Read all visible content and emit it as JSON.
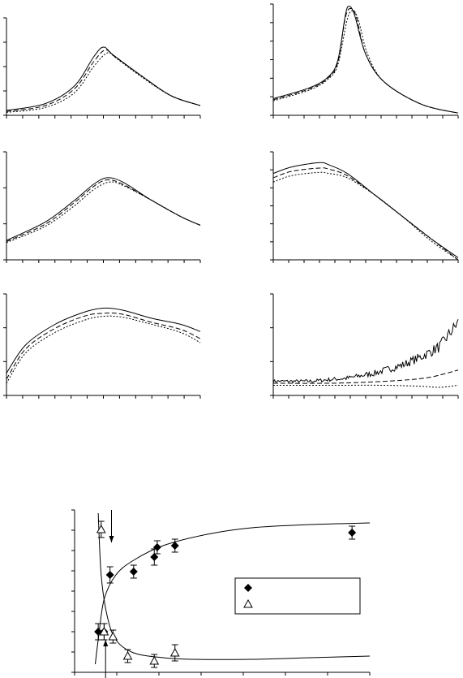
{
  "chart_data": [
    {
      "type": "line",
      "panel": "top-left",
      "series": [
        {
          "style": "solid",
          "points": [
            [
              0,
              0.05
            ],
            [
              0.2,
              0.12
            ],
            [
              0.35,
              0.3
            ],
            [
              0.45,
              0.6
            ],
            [
              0.5,
              0.7
            ],
            [
              0.55,
              0.62
            ],
            [
              0.7,
              0.4
            ],
            [
              0.85,
              0.2
            ],
            [
              1.0,
              0.1
            ]
          ]
        },
        {
          "style": "dashed",
          "points": [
            [
              0,
              0.04
            ],
            [
              0.2,
              0.1
            ],
            [
              0.35,
              0.27
            ],
            [
              0.45,
              0.55
            ],
            [
              0.51,
              0.67
            ],
            [
              0.56,
              0.6
            ],
            [
              0.7,
              0.4
            ],
            [
              0.85,
              0.2
            ],
            [
              1.0,
              0.1
            ]
          ]
        },
        {
          "style": "dotted",
          "points": [
            [
              0,
              0.03
            ],
            [
              0.2,
              0.08
            ],
            [
              0.35,
              0.23
            ],
            [
              0.45,
              0.5
            ],
            [
              0.52,
              0.64
            ],
            [
              0.57,
              0.58
            ],
            [
              0.7,
              0.39
            ],
            [
              0.85,
              0.2
            ],
            [
              1.0,
              0.1
            ]
          ]
        }
      ],
      "xlim": [
        0,
        1
      ],
      "ylim": [
        0,
        1
      ]
    },
    {
      "type": "line",
      "panel": "top-right",
      "series": [
        {
          "style": "solid",
          "points": [
            [
              0,
              0.15
            ],
            [
              0.2,
              0.25
            ],
            [
              0.3,
              0.35
            ],
            [
              0.35,
              0.5
            ],
            [
              0.39,
              0.9
            ],
            [
              0.41,
              0.98
            ],
            [
              0.44,
              0.9
            ],
            [
              0.5,
              0.55
            ],
            [
              0.6,
              0.3
            ],
            [
              0.8,
              0.1
            ],
            [
              1.0,
              0.02
            ]
          ]
        },
        {
          "style": "dashed",
          "points": [
            [
              0,
              0.14
            ],
            [
              0.2,
              0.24
            ],
            [
              0.3,
              0.34
            ],
            [
              0.35,
              0.48
            ],
            [
              0.39,
              0.88
            ],
            [
              0.42,
              0.96
            ],
            [
              0.45,
              0.88
            ],
            [
              0.5,
              0.55
            ],
            [
              0.6,
              0.3
            ],
            [
              0.8,
              0.1
            ],
            [
              1.0,
              0.02
            ]
          ]
        },
        {
          "style": "dotted",
          "points": [
            [
              0,
              0.13
            ],
            [
              0.2,
              0.23
            ],
            [
              0.3,
              0.33
            ],
            [
              0.35,
              0.46
            ],
            [
              0.4,
              0.86
            ],
            [
              0.43,
              0.94
            ],
            [
              0.46,
              0.86
            ],
            [
              0.51,
              0.55
            ],
            [
              0.6,
              0.3
            ],
            [
              0.8,
              0.1
            ],
            [
              1.0,
              0.02
            ]
          ]
        }
      ],
      "xlim": [
        0,
        1
      ],
      "ylim": [
        0,
        1
      ]
    },
    {
      "type": "line",
      "panel": "middle-left",
      "series": [
        {
          "style": "solid",
          "points": [
            [
              0,
              0.18
            ],
            [
              0.2,
              0.35
            ],
            [
              0.35,
              0.55
            ],
            [
              0.45,
              0.7
            ],
            [
              0.52,
              0.76
            ],
            [
              0.6,
              0.72
            ],
            [
              0.75,
              0.55
            ],
            [
              0.9,
              0.4
            ],
            [
              1.0,
              0.32
            ]
          ]
        },
        {
          "style": "dashed",
          "points": [
            [
              0,
              0.17
            ],
            [
              0.2,
              0.33
            ],
            [
              0.35,
              0.53
            ],
            [
              0.45,
              0.68
            ],
            [
              0.52,
              0.74
            ],
            [
              0.6,
              0.7
            ],
            [
              0.75,
              0.55
            ],
            [
              0.9,
              0.4
            ],
            [
              1.0,
              0.32
            ]
          ]
        },
        {
          "style": "dotted",
          "points": [
            [
              0,
              0.16
            ],
            [
              0.2,
              0.31
            ],
            [
              0.35,
              0.5
            ],
            [
              0.45,
              0.65
            ],
            [
              0.53,
              0.72
            ],
            [
              0.6,
              0.69
            ],
            [
              0.75,
              0.55
            ],
            [
              0.9,
              0.4
            ],
            [
              1.0,
              0.32
            ]
          ]
        }
      ],
      "xlim": [
        0,
        1
      ],
      "ylim": [
        0,
        1
      ]
    },
    {
      "type": "line",
      "panel": "middle-right",
      "series": [
        {
          "style": "solid",
          "points": [
            [
              0,
              0.8
            ],
            [
              0.1,
              0.86
            ],
            [
              0.25,
              0.9
            ],
            [
              0.3,
              0.88
            ],
            [
              0.4,
              0.8
            ],
            [
              0.55,
              0.6
            ],
            [
              0.7,
              0.4
            ],
            [
              0.85,
              0.2
            ],
            [
              1.0,
              0.02
            ]
          ]
        },
        {
          "style": "dashed",
          "points": [
            [
              0,
              0.76
            ],
            [
              0.1,
              0.82
            ],
            [
              0.25,
              0.85
            ],
            [
              0.3,
              0.84
            ],
            [
              0.4,
              0.78
            ],
            [
              0.55,
              0.6
            ],
            [
              0.7,
              0.4
            ],
            [
              0.85,
              0.2
            ],
            [
              1.0,
              0.0
            ]
          ]
        },
        {
          "style": "dotted",
          "points": [
            [
              0,
              0.72
            ],
            [
              0.1,
              0.78
            ],
            [
              0.25,
              0.81
            ],
            [
              0.3,
              0.8
            ],
            [
              0.4,
              0.76
            ],
            [
              0.55,
              0.6
            ],
            [
              0.7,
              0.4
            ],
            [
              0.85,
              0.18
            ],
            [
              1.0,
              0.0
            ]
          ]
        }
      ],
      "xlim": [
        0,
        1
      ],
      "ylim": [
        0,
        1
      ]
    },
    {
      "type": "line",
      "panel": "bottom-left",
      "series": [
        {
          "style": "solid",
          "points": [
            [
              0,
              0.22
            ],
            [
              0.1,
              0.5
            ],
            [
              0.25,
              0.7
            ],
            [
              0.4,
              0.82
            ],
            [
              0.5,
              0.86
            ],
            [
              0.6,
              0.84
            ],
            [
              0.75,
              0.76
            ],
            [
              0.9,
              0.7
            ],
            [
              1.0,
              0.63
            ]
          ]
        },
        {
          "style": "dashed",
          "points": [
            [
              0,
              0.16
            ],
            [
              0.1,
              0.46
            ],
            [
              0.25,
              0.66
            ],
            [
              0.4,
              0.78
            ],
            [
              0.5,
              0.81
            ],
            [
              0.6,
              0.8
            ],
            [
              0.75,
              0.72
            ],
            [
              0.9,
              0.65
            ],
            [
              1.0,
              0.56
            ]
          ]
        },
        {
          "style": "dotted",
          "points": [
            [
              0,
              0.12
            ],
            [
              0.1,
              0.42
            ],
            [
              0.25,
              0.62
            ],
            [
              0.4,
              0.74
            ],
            [
              0.5,
              0.78
            ],
            [
              0.6,
              0.77
            ],
            [
              0.75,
              0.7
            ],
            [
              0.9,
              0.62
            ],
            [
              1.0,
              0.52
            ]
          ]
        }
      ],
      "xlim": [
        0,
        1
      ],
      "ylim": [
        0,
        1
      ]
    },
    {
      "type": "line",
      "panel": "bottom-right",
      "series": [
        {
          "style": "solid",
          "noisy": true,
          "points": [
            [
              0,
              0.14
            ],
            [
              0.2,
              0.14
            ],
            [
              0.4,
              0.17
            ],
            [
              0.55,
              0.22
            ],
            [
              0.7,
              0.3
            ],
            [
              0.8,
              0.38
            ],
            [
              0.9,
              0.48
            ],
            [
              1.0,
              0.72
            ]
          ]
        },
        {
          "style": "dashed",
          "points": [
            [
              0,
              0.12
            ],
            [
              0.3,
              0.12
            ],
            [
              0.5,
              0.13
            ],
            [
              0.7,
              0.15
            ],
            [
              0.85,
              0.18
            ],
            [
              1.0,
              0.25
            ]
          ]
        },
        {
          "style": "dotted",
          "points": [
            [
              0,
              0.1
            ],
            [
              0.3,
              0.1
            ],
            [
              0.6,
              0.1
            ],
            [
              0.8,
              0.09
            ],
            [
              0.9,
              0.08
            ],
            [
              1.0,
              0.1
            ]
          ]
        }
      ],
      "xlim": [
        0,
        1
      ],
      "ylim": [
        0,
        1
      ]
    },
    {
      "type": "scatter",
      "panel": "bottom",
      "xlim": [
        0,
        1
      ],
      "ylim": [
        0,
        1
      ],
      "series": [
        {
          "marker": "diamond-filled",
          "points": [
            {
              "x": 0.08,
              "y": 0.25,
              "err": 0.05
            },
            {
              "x": 0.1,
              "y": 0.25,
              "err": 0.05
            },
            {
              "x": 0.12,
              "y": 0.6,
              "err": 0.05
            },
            {
              "x": 0.2,
              "y": 0.62,
              "err": 0.04
            },
            {
              "x": 0.27,
              "y": 0.71,
              "err": 0.05
            },
            {
              "x": 0.28,
              "y": 0.77,
              "err": 0.04
            },
            {
              "x": 0.34,
              "y": 0.78,
              "err": 0.04
            },
            {
              "x": 0.94,
              "y": 0.86,
              "err": 0.04
            }
          ]
        },
        {
          "marker": "triangle-open",
          "points": [
            {
              "x": 0.09,
              "y": 0.88,
              "err": 0.05
            },
            {
              "x": 0.1,
              "y": 0.25,
              "err": 0.05
            },
            {
              "x": 0.13,
              "y": 0.22,
              "err": 0.04
            },
            {
              "x": 0.18,
              "y": 0.1,
              "err": 0.04
            },
            {
              "x": 0.27,
              "y": 0.07,
              "err": 0.04
            },
            {
              "x": 0.34,
              "y": 0.12,
              "err": 0.05
            }
          ]
        }
      ],
      "fits": [
        {
          "name": "rising",
          "points": [
            [
              0.07,
              0.05
            ],
            [
              0.08,
              0.2
            ],
            [
              0.1,
              0.45
            ],
            [
              0.14,
              0.6
            ],
            [
              0.2,
              0.69
            ],
            [
              0.3,
              0.78
            ],
            [
              0.45,
              0.85
            ],
            [
              0.6,
              0.89
            ],
            [
              0.8,
              0.91
            ],
            [
              1.0,
              0.92
            ]
          ]
        },
        {
          "name": "falling",
          "points": [
            [
              0.08,
              0.98
            ],
            [
              0.09,
              0.6
            ],
            [
              0.11,
              0.35
            ],
            [
              0.14,
              0.2
            ],
            [
              0.2,
              0.12
            ],
            [
              0.3,
              0.09
            ],
            [
              0.4,
              0.08
            ],
            [
              0.6,
              0.08
            ],
            [
              0.8,
              0.09
            ],
            [
              1.0,
              0.1
            ]
          ]
        }
      ],
      "arrows": [
        {
          "x": 0.125,
          "direction": "down",
          "from": 1.0,
          "to": 0.8
        },
        {
          "x": 0.105,
          "direction": "up",
          "from": -0.05,
          "to": 0.2
        }
      ],
      "legend": {
        "placement": "center-right",
        "entries": [
          {
            "marker": "diamond-filled",
            "label": ""
          },
          {
            "marker": "triangle-open",
            "label": ""
          }
        ]
      }
    }
  ]
}
